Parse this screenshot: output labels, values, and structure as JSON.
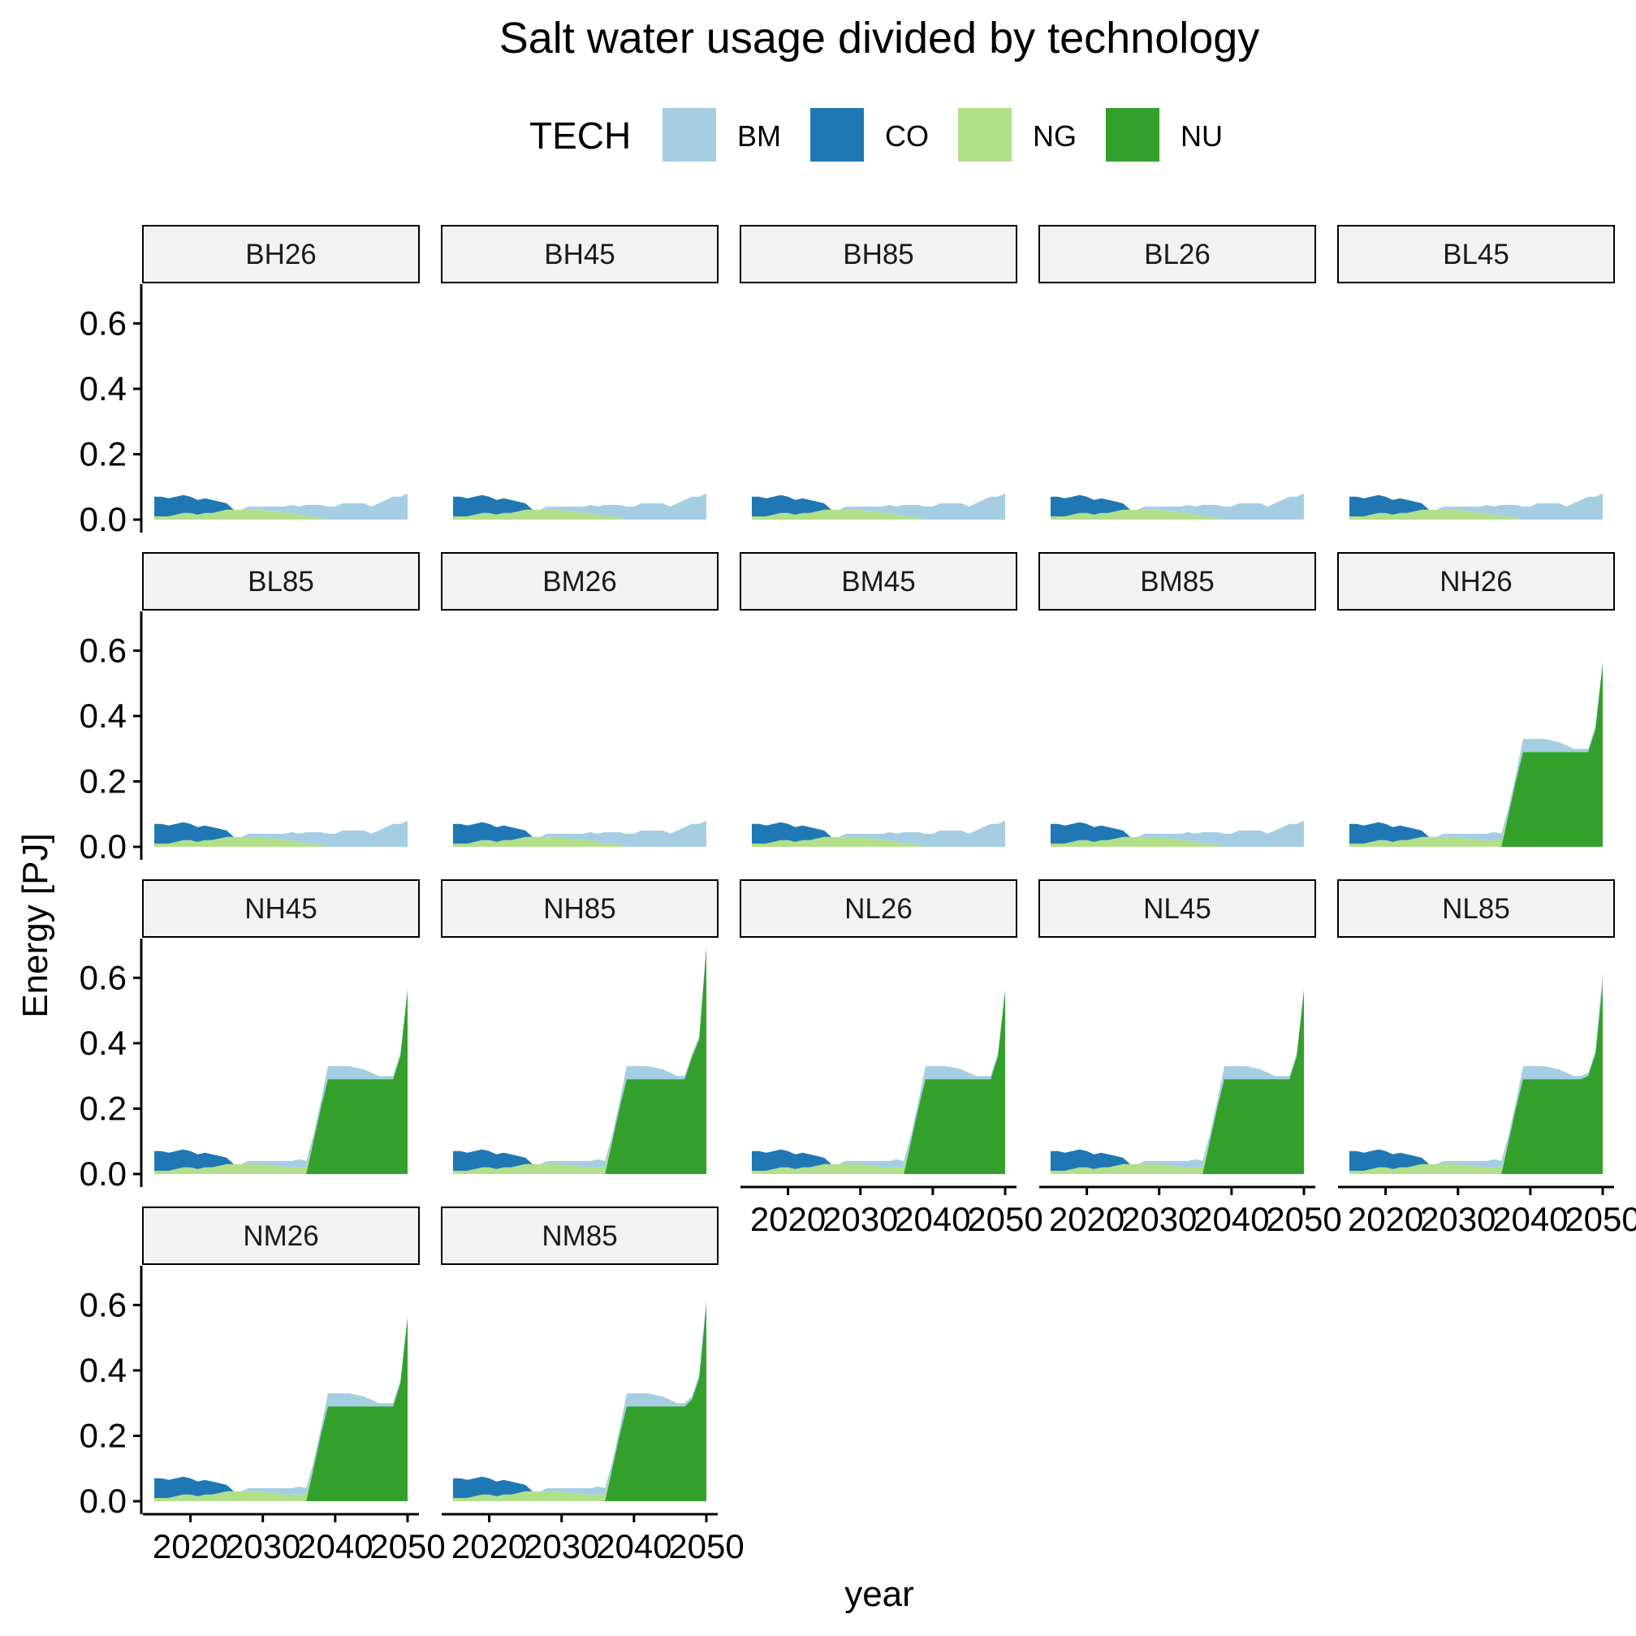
{
  "chart_data": {
    "type": "area",
    "stacked": true,
    "faceted": true,
    "title": "Salt water usage divided by technology",
    "xlabel": "year",
    "ylabel": "Energy [PJ]",
    "xlim": [
      2015,
      2050
    ],
    "ylim": [
      0,
      0.72
    ],
    "x_ticks": [
      2020,
      2030,
      2040,
      2050
    ],
    "y_ticks": [
      0.0,
      0.2,
      0.4,
      0.6
    ],
    "y_tick_labels": [
      "0.0",
      "0.2",
      "0.4",
      "0.6"
    ],
    "grid": false,
    "legend": {
      "title": "TECH",
      "placement": "top",
      "entries": [
        {
          "name": "BM",
          "color": "#a6cee3"
        },
        {
          "name": "CO",
          "color": "#1f78b4"
        },
        {
          "name": "NG",
          "color": "#b2df8a"
        },
        {
          "name": "NU",
          "color": "#33a02c"
        }
      ]
    },
    "x": [
      2015,
      2016,
      2017,
      2018,
      2019,
      2020,
      2021,
      2022,
      2023,
      2024,
      2025,
      2026,
      2027,
      2028,
      2029,
      2030,
      2031,
      2032,
      2033,
      2034,
      2035,
      2036,
      2037,
      2038,
      2039,
      2040,
      2041,
      2042,
      2043,
      2044,
      2045,
      2046,
      2047,
      2048,
      2049,
      2050
    ],
    "profiles": {
      "baseline": {
        "NU": [
          0,
          0,
          0,
          0,
          0,
          0,
          0,
          0,
          0,
          0,
          0,
          0,
          0,
          0,
          0,
          0,
          0,
          0,
          0,
          0,
          0,
          0,
          0,
          0,
          0,
          0,
          0,
          0,
          0,
          0,
          0,
          0,
          0,
          0,
          0,
          0
        ],
        "NG": [
          0.01,
          0.01,
          0.01,
          0.015,
          0.02,
          0.02,
          0.015,
          0.02,
          0.02,
          0.025,
          0.03,
          0.03,
          0.03,
          0.03,
          0.03,
          0.03,
          0.025,
          0.025,
          0.02,
          0.02,
          0.015,
          0.01,
          0.01,
          0.005,
          0,
          0,
          0,
          0,
          0,
          0,
          0,
          0,
          0,
          0,
          0,
          0
        ],
        "CO": [
          0.06,
          0.06,
          0.055,
          0.055,
          0.055,
          0.05,
          0.045,
          0.045,
          0.04,
          0.03,
          0.02,
          0,
          0,
          0,
          0,
          0,
          0,
          0,
          0,
          0,
          0,
          0,
          0,
          0,
          0,
          0,
          0,
          0,
          0,
          0,
          0,
          0,
          0,
          0,
          0,
          0
        ],
        "BM": [
          0,
          0,
          0,
          0,
          0,
          0,
          0,
          0,
          0,
          0,
          0,
          0,
          0,
          0.01,
          0.01,
          0.01,
          0.015,
          0.015,
          0.02,
          0.025,
          0.025,
          0.035,
          0.035,
          0.04,
          0.04,
          0.04,
          0.05,
          0.05,
          0.05,
          0.05,
          0.04,
          0.05,
          0.06,
          0.07,
          0.07,
          0.08
        ]
      },
      "nuclear": {
        "NU": [
          0,
          0,
          0,
          0,
          0,
          0,
          0,
          0,
          0,
          0,
          0,
          0,
          0,
          0,
          0,
          0,
          0,
          0,
          0,
          0,
          0,
          0,
          0.1,
          0.2,
          0.29,
          0.29,
          0.29,
          0.29,
          0.29,
          0.29,
          0.29,
          0.29,
          0.29,
          0.29,
          0.36,
          0.56
        ],
        "NG": [
          0.01,
          0.01,
          0.01,
          0.015,
          0.02,
          0.02,
          0.015,
          0.02,
          0.02,
          0.025,
          0.03,
          0.03,
          0.03,
          0.03,
          0.03,
          0.03,
          0.025,
          0.025,
          0.02,
          0.02,
          0.02,
          0.02,
          0,
          0,
          0,
          0,
          0,
          0,
          0,
          0,
          0,
          0,
          0,
          0,
          0,
          0
        ],
        "CO": [
          0.06,
          0.06,
          0.055,
          0.055,
          0.055,
          0.05,
          0.045,
          0.045,
          0.04,
          0.03,
          0.02,
          0,
          0,
          0,
          0,
          0,
          0,
          0,
          0,
          0,
          0,
          0,
          0,
          0,
          0,
          0,
          0,
          0,
          0,
          0,
          0,
          0,
          0,
          0,
          0,
          0
        ],
        "BM": [
          0,
          0,
          0,
          0,
          0,
          0,
          0,
          0,
          0,
          0,
          0,
          0,
          0,
          0.01,
          0.01,
          0.01,
          0.015,
          0.015,
          0.02,
          0.02,
          0.025,
          0.02,
          0.02,
          0.02,
          0.04,
          0.04,
          0.04,
          0.04,
          0.035,
          0.03,
          0.02,
          0.01,
          0.01,
          0.01,
          0.01,
          0.01
        ]
      }
    },
    "panels": [
      {
        "label": "BH26",
        "profile": "baseline"
      },
      {
        "label": "BH45",
        "profile": "baseline"
      },
      {
        "label": "BH85",
        "profile": "baseline"
      },
      {
        "label": "BL26",
        "profile": "baseline"
      },
      {
        "label": "BL45",
        "profile": "baseline"
      },
      {
        "label": "BL85",
        "profile": "baseline"
      },
      {
        "label": "BM26",
        "profile": "baseline"
      },
      {
        "label": "BM45",
        "profile": "baseline"
      },
      {
        "label": "BM85",
        "profile": "baseline"
      },
      {
        "label": "NH26",
        "profile": "nuclear"
      },
      {
        "label": "NH45",
        "profile": "nuclear"
      },
      {
        "label": "NH85",
        "profile": "nuclear",
        "nu_2050": 0.69
      },
      {
        "label": "NL26",
        "profile": "nuclear"
      },
      {
        "label": "NL45",
        "profile": "nuclear"
      },
      {
        "label": "NL85",
        "profile": "nuclear",
        "nu_2050": 0.58,
        "bm_2050": 0.04
      },
      {
        "label": "NM26",
        "profile": "nuclear"
      },
      {
        "label": "NM85",
        "profile": "nuclear",
        "nu_2050": 0.6,
        "bm_2050": 0.02
      }
    ]
  }
}
